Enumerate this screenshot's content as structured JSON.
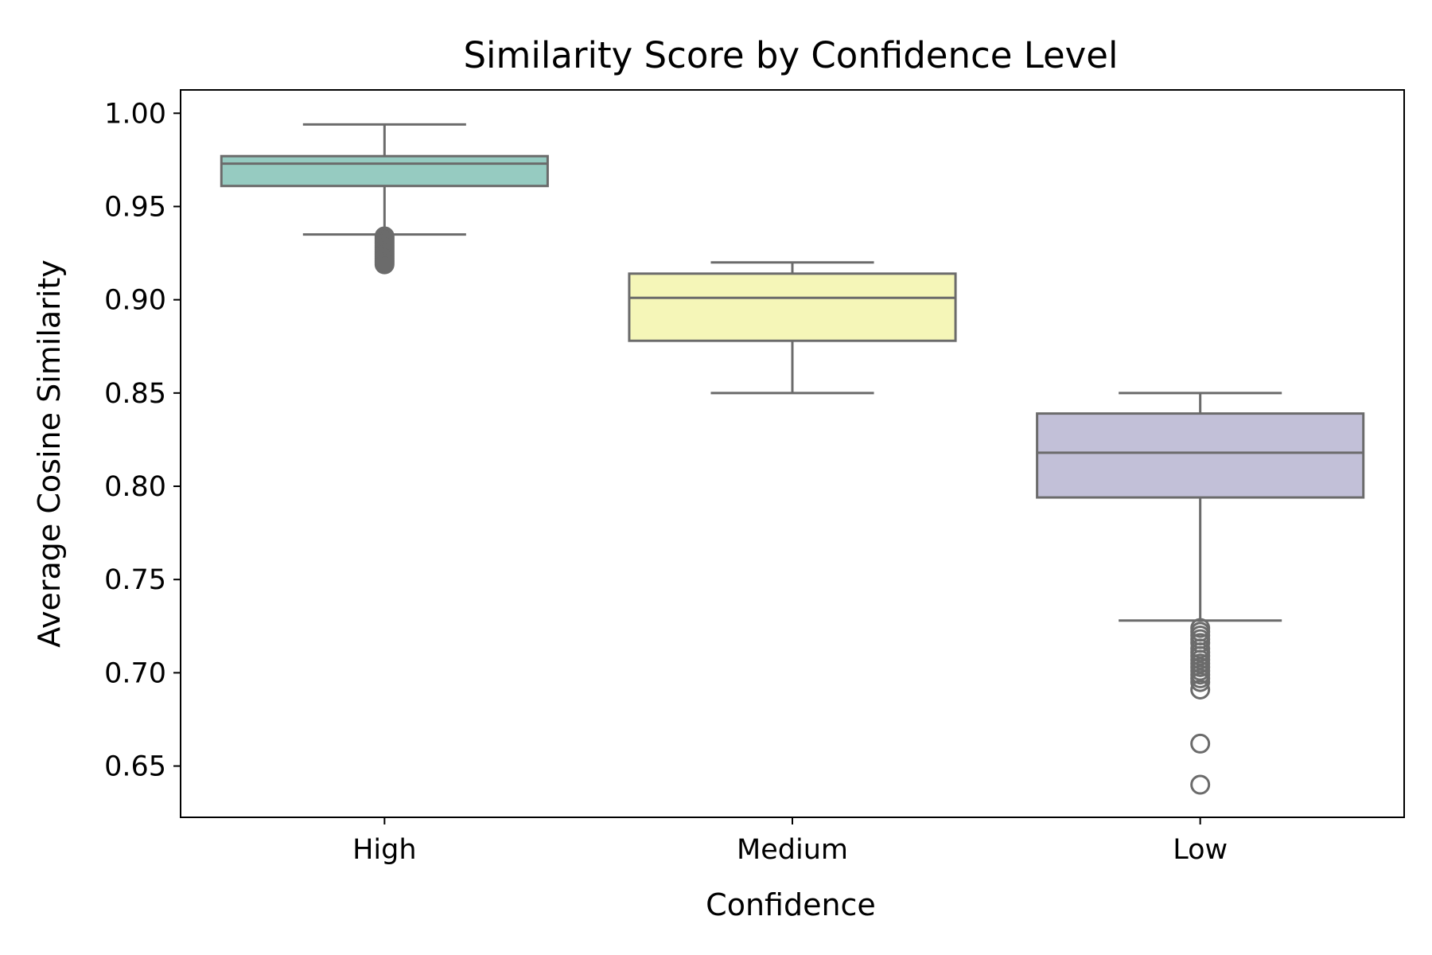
{
  "chart_data": {
    "type": "box",
    "title": "Similarity Score by Confidence Level",
    "xlabel": "Confidence",
    "ylabel": "Average Cosine Similarity",
    "categories": [
      "High",
      "Medium",
      "Low"
    ],
    "ylim": [
      0.6225,
      1.0125
    ],
    "yticks": [
      0.65,
      0.7,
      0.75,
      0.8,
      0.85,
      0.9,
      0.95,
      1.0
    ],
    "ytick_labels": [
      "0.65",
      "0.70",
      "0.75",
      "0.80",
      "0.85",
      "0.90",
      "0.95",
      "1.00"
    ],
    "grid": false,
    "legend": "none",
    "series": [
      {
        "category": "High",
        "color": "#96cbc1",
        "whisker_low": 0.935,
        "q1": 0.961,
        "median": 0.973,
        "q3": 0.977,
        "whisker_high": 0.994,
        "outliers": [
          0.934,
          0.933,
          0.932,
          0.931,
          0.93,
          0.929,
          0.928,
          0.927,
          0.926,
          0.925,
          0.924,
          0.923,
          0.922,
          0.921,
          0.92,
          0.919
        ],
        "outlier_style": "filled"
      },
      {
        "category": "Medium",
        "color": "#f5f6b8",
        "whisker_low": 0.85,
        "q1": 0.878,
        "median": 0.901,
        "q3": 0.914,
        "whisker_high": 0.92,
        "outliers": [],
        "outlier_style": "hollow"
      },
      {
        "category": "Low",
        "color": "#c2c0d8",
        "whisker_low": 0.728,
        "q1": 0.794,
        "median": 0.818,
        "q3": 0.839,
        "whisker_high": 0.85,
        "outliers": [
          0.724,
          0.722,
          0.72,
          0.718,
          0.716,
          0.713,
          0.711,
          0.709,
          0.707,
          0.705,
          0.703,
          0.701,
          0.699,
          0.697,
          0.695,
          0.691,
          0.662,
          0.64
        ],
        "outlier_style": "hollow"
      }
    ],
    "box_edge_color": "#6b6b6b"
  }
}
